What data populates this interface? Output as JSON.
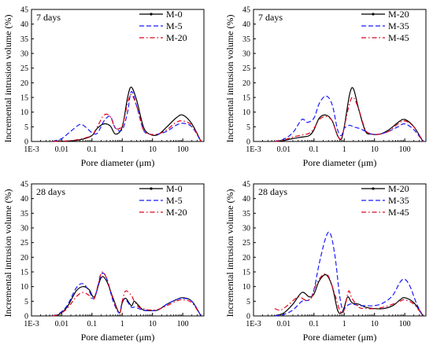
{
  "chart_data": [
    {
      "type": "line",
      "panel_label": "7 days",
      "xlabel": "Pore diameter (μm)",
      "ylabel": "Incremental intrusion volume (%)",
      "x_scale": "log",
      "xlim": [
        0.001,
        500
      ],
      "ylim": [
        0,
        45
      ],
      "x_ticks": [
        "1E-3",
        "0.01",
        "0.1",
        "1",
        "10",
        "100"
      ],
      "y_ticks": [
        "0",
        "5",
        "10",
        "15",
        "20",
        "25",
        "30",
        "35",
        "40",
        "45"
      ],
      "legend_position": "top-right",
      "series": [
        {
          "name": "M-0",
          "color": "#000000",
          "style": "solid",
          "x": [
            0.005,
            0.02,
            0.05,
            0.1,
            0.15,
            0.25,
            0.4,
            0.6,
            1,
            1.5,
            2,
            3,
            5,
            8,
            15,
            30,
            60,
            100,
            200,
            400
          ],
          "y": [
            0,
            0.2,
            0.8,
            2,
            4.5,
            6,
            5.3,
            2.5,
            5,
            15,
            18.5,
            14,
            5,
            2.5,
            2.3,
            5,
            8,
            9,
            6,
            0
          ]
        },
        {
          "name": "M-5",
          "color": "#1a1aff",
          "style": "dashed",
          "x": [
            0.005,
            0.01,
            0.02,
            0.04,
            0.06,
            0.1,
            0.15,
            0.25,
            0.4,
            0.6,
            1,
            1.5,
            2,
            3,
            5,
            8,
            15,
            30,
            60,
            100,
            200,
            400
          ],
          "y": [
            0,
            1,
            3.5,
            5.8,
            5,
            3,
            2.8,
            7,
            8.5,
            4.5,
            4,
            10,
            17,
            12,
            4,
            2.5,
            2.5,
            3.5,
            5.5,
            6.2,
            5,
            0
          ]
        },
        {
          "name": "M-20",
          "color": "#e0001a",
          "style": "dashdot",
          "x": [
            0.005,
            0.02,
            0.05,
            0.1,
            0.15,
            0.25,
            0.4,
            0.6,
            1,
            1.5,
            2,
            3,
            5,
            8,
            15,
            30,
            60,
            100,
            200,
            400
          ],
          "y": [
            0,
            0.3,
            1,
            2.2,
            5,
            9,
            8.5,
            4.5,
            5.5,
            13,
            16,
            12,
            4,
            2.5,
            2.5,
            4,
            6.5,
            7,
            5.5,
            0
          ]
        }
      ]
    },
    {
      "type": "line",
      "panel_label": "7 days",
      "xlabel": "Pore diameter (μm)",
      "ylabel": "Incremental intrusion volume (%)",
      "x_scale": "log",
      "xlim": [
        0.001,
        500
      ],
      "ylim": [
        0,
        45
      ],
      "x_ticks": [
        "1E-3",
        "0.01",
        "0.1",
        "1",
        "10",
        "100"
      ],
      "y_ticks": [
        "0",
        "5",
        "10",
        "15",
        "20",
        "25",
        "30",
        "35",
        "40",
        "45"
      ],
      "legend_position": "top-right",
      "series": [
        {
          "name": "M-20",
          "color": "#000000",
          "style": "solid",
          "x": [
            0.005,
            0.01,
            0.02,
            0.04,
            0.07,
            0.1,
            0.15,
            0.25,
            0.4,
            0.6,
            0.8,
            1,
            1.5,
            2,
            3,
            5,
            8,
            15,
            30,
            60,
            100,
            200,
            400
          ],
          "y": [
            0,
            0.3,
            1,
            1.5,
            2,
            4,
            8,
            9,
            7,
            2,
            0.8,
            5,
            16,
            18,
            11,
            3.5,
            2.5,
            2.5,
            4,
            6.5,
            7.5,
            5,
            0
          ]
        },
        {
          "name": "M-35",
          "color": "#1a1aff",
          "style": "dashed",
          "x": [
            0.005,
            0.01,
            0.02,
            0.04,
            0.06,
            0.1,
            0.15,
            0.25,
            0.4,
            0.6,
            0.8,
            1,
            1.5,
            2,
            3,
            5,
            8,
            15,
            30,
            60,
            100,
            200,
            400
          ],
          "y": [
            0,
            0.8,
            3,
            7.5,
            6.5,
            8,
            13,
            15.5,
            12.5,
            4,
            2,
            4.5,
            5.5,
            5,
            4.5,
            3.5,
            2.5,
            2.5,
            3.5,
            5,
            6,
            4,
            0
          ]
        },
        {
          "name": "M-45",
          "color": "#e0001a",
          "style": "dashdot",
          "x": [
            0.005,
            0.01,
            0.02,
            0.04,
            0.07,
            0.1,
            0.15,
            0.25,
            0.4,
            0.6,
            0.8,
            1,
            1.5,
            2,
            3,
            5,
            8,
            15,
            30,
            60,
            100,
            200,
            400
          ],
          "y": [
            0,
            0.5,
            1.5,
            2.2,
            2.8,
            4.5,
            7.5,
            8.5,
            7,
            2,
            1,
            5,
            13,
            15,
            11,
            4,
            2.5,
            2.5,
            3.5,
            6,
            7,
            5,
            0
          ]
        }
      ]
    },
    {
      "type": "line",
      "panel_label": "28 days",
      "xlabel": "Pore diameter (μm)",
      "ylabel": "Incremental intrusion volume (%)",
      "x_scale": "log",
      "xlim": [
        0.001,
        500
      ],
      "ylim": [
        0,
        45
      ],
      "x_ticks": [
        "1E-3",
        "0.01",
        "0.1",
        "1",
        "10",
        "100"
      ],
      "y_ticks": [
        "0",
        "5",
        "10",
        "15",
        "20",
        "25",
        "30",
        "35",
        "40",
        "45"
      ],
      "legend_position": "top-right",
      "series": [
        {
          "name": "M-0",
          "color": "#000000",
          "style": "solid",
          "x": [
            0.005,
            0.008,
            0.015,
            0.03,
            0.05,
            0.08,
            0.12,
            0.2,
            0.3,
            0.5,
            0.8,
            1,
            1.3,
            2,
            2.5,
            3.5,
            5,
            8,
            15,
            30,
            60,
            100,
            200,
            400
          ],
          "y": [
            0,
            0.5,
            3,
            8.5,
            10,
            9,
            6.5,
            13,
            12,
            6,
            1,
            4.5,
            6,
            3.5,
            5,
            3.5,
            2,
            1.8,
            2,
            4,
            5.5,
            6.2,
            5,
            0
          ]
        },
        {
          "name": "M-5",
          "color": "#1a1aff",
          "style": "dashed",
          "x": [
            0.005,
            0.008,
            0.015,
            0.03,
            0.05,
            0.08,
            0.12,
            0.2,
            0.3,
            0.5,
            0.8,
            1,
            1.3,
            2,
            2.5,
            3.5,
            5,
            8,
            15,
            30,
            60,
            100,
            200,
            400
          ],
          "y": [
            0,
            0.7,
            3.5,
            9.5,
            11,
            8.5,
            6,
            14,
            13,
            5,
            1,
            5,
            5.5,
            3,
            3,
            2.5,
            2,
            1.8,
            2,
            4,
            5.5,
            6,
            5,
            0
          ]
        },
        {
          "name": "M-20",
          "color": "#e0001a",
          "style": "dashdot",
          "x": [
            0.005,
            0.008,
            0.015,
            0.03,
            0.05,
            0.08,
            0.12,
            0.2,
            0.3,
            0.5,
            0.8,
            1,
            1.3,
            2,
            2.5,
            3.5,
            5,
            8,
            15,
            30,
            60,
            100,
            200,
            400
          ],
          "y": [
            0,
            0.5,
            2.5,
            6.5,
            8,
            7,
            6,
            14.5,
            13,
            5.5,
            1,
            5,
            8.5,
            7,
            5,
            3,
            2.5,
            2,
            2.2,
            3.5,
            5,
            5.5,
            4.5,
            0
          ]
        }
      ]
    },
    {
      "type": "line",
      "panel_label": "28 days",
      "xlabel": "Pore diameter (μm)",
      "ylabel": "Incremental intrusion volume (%)",
      "x_scale": "log",
      "xlim": [
        0.001,
        500
      ],
      "ylim": [
        0,
        45
      ],
      "x_ticks": [
        "1E-3",
        "0.01",
        "0.1",
        "1",
        "10",
        "100"
      ],
      "y_ticks": [
        "0",
        "5",
        "10",
        "15",
        "20",
        "25",
        "30",
        "35",
        "40",
        "45"
      ],
      "legend_position": "top-right",
      "series": [
        {
          "name": "M-20",
          "color": "#000000",
          "style": "solid",
          "x": [
            0.005,
            0.01,
            0.02,
            0.04,
            0.07,
            0.1,
            0.15,
            0.25,
            0.4,
            0.6,
            0.8,
            1,
            1.3,
            1.8,
            3,
            5,
            10,
            20,
            40,
            70,
            100,
            200,
            400
          ],
          "y": [
            0,
            1,
            4,
            8,
            6.5,
            7.5,
            12,
            14,
            10,
            2,
            1,
            3,
            6.5,
            4.5,
            4,
            3,
            2.5,
            2.5,
            3.5,
            5.5,
            6.2,
            4.5,
            0
          ]
        },
        {
          "name": "M-35",
          "color": "#1a1aff",
          "style": "dashed",
          "x": [
            0.005,
            0.01,
            0.02,
            0.04,
            0.07,
            0.1,
            0.15,
            0.25,
            0.35,
            0.5,
            0.7,
            0.9,
            1.1,
            1.5,
            2,
            3,
            5,
            10,
            20,
            40,
            70,
            100,
            150,
            250,
            400
          ],
          "y": [
            0,
            0.5,
            2,
            5,
            5.5,
            9,
            18,
            27,
            28,
            20,
            7,
            2,
            3,
            4,
            4,
            3.5,
            3.5,
            3.5,
            4.5,
            7,
            11.5,
            12.5,
            10,
            4,
            0
          ]
        },
        {
          "name": "M-45",
          "color": "#e0001a",
          "style": "dashdot",
          "x": [
            0.005,
            0.008,
            0.015,
            0.03,
            0.05,
            0.08,
            0.12,
            0.2,
            0.3,
            0.5,
            0.7,
            0.9,
            1.1,
            1.4,
            1.8,
            3,
            5,
            10,
            20,
            40,
            70,
            100,
            200,
            400
          ],
          "y": [
            2.5,
            2,
            4,
            6.5,
            5.5,
            6,
            11,
            14,
            13.5,
            7,
            2,
            1,
            4,
            8.5,
            6,
            3,
            2.5,
            2.5,
            3,
            4,
            5,
            5.5,
            4,
            0
          ]
        }
      ]
    }
  ]
}
